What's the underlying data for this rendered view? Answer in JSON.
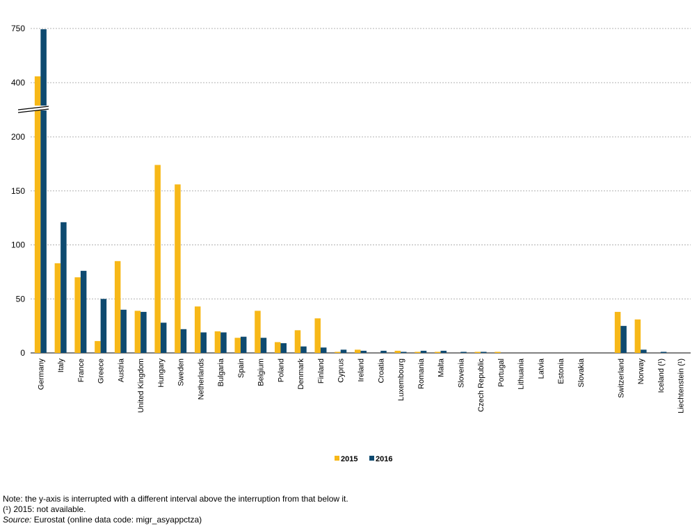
{
  "chart_data": {
    "type": "bar",
    "title": "",
    "xlabel": "",
    "ylabel": "",
    "categories": [
      "Germany",
      "Italy",
      "France",
      "Greece",
      "Austria",
      "United Kingdom",
      "Hungary",
      "Sweden",
      "Netherlands",
      "Bulgaria",
      "Spain",
      "Belgium",
      "Poland",
      "Denmark",
      "Finland",
      "Cyprus",
      "Ireland",
      "Croatia",
      "Luxembourg",
      "Romania",
      "Malta",
      "Slovenia",
      "Czech Republic",
      "Portugal",
      "Lithuania",
      "Latvia",
      "Estonia",
      "Slovakia",
      "",
      "Switzerland",
      "Norway",
      "Iceland (¹)",
      "Liechtenstein (¹)"
    ],
    "series": [
      {
        "name": "2015",
        "color": "#f7b818",
        "values": [
          441,
          83,
          70,
          11,
          85,
          39,
          174,
          156,
          43,
          20,
          14,
          39,
          10,
          21,
          32,
          1,
          3,
          0,
          2,
          1,
          1,
          0,
          1,
          1,
          0,
          0,
          0,
          0,
          null,
          38,
          31,
          null,
          null
        ]
      },
      {
        "name": "2016",
        "color": "#0e4a70",
        "values": [
          745,
          121,
          76,
          50,
          40,
          38,
          28,
          22,
          19,
          19,
          15,
          14,
          9,
          6,
          5,
          3,
          2,
          2,
          1,
          2,
          2,
          1,
          1,
          0,
          0,
          0,
          0,
          0,
          null,
          25,
          3,
          1,
          0
        ]
      }
    ],
    "y_axis_break": true,
    "y_ticks_lower": [
      0,
      50,
      100,
      150,
      200
    ],
    "y_ticks_upper": [
      400,
      750
    ],
    "ylim_lower": [
      0,
      200
    ],
    "ylim_upper": [
      400,
      750
    ],
    "grid": true,
    "legend_position": "bottom-center"
  },
  "notes": {
    "line1": "Note: the y-axis is interrupted with a different interval above the interruption from that below it.",
    "line2": "(¹) 2015: not available.",
    "source_label": "Source:",
    "source_text": "Eurostat (online data code: migr_asyappctza)"
  }
}
